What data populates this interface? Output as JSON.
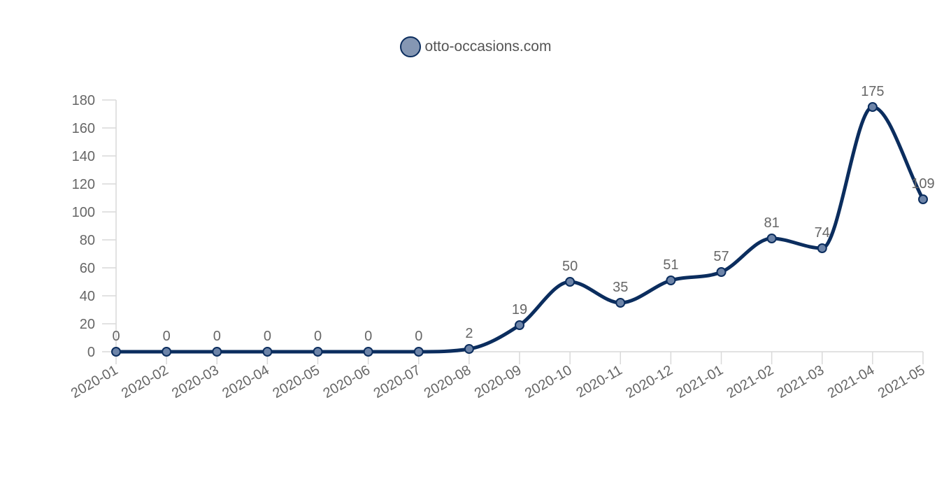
{
  "legend": {
    "label": "otto-occasions.com",
    "swatch_fill": "#8597b3",
    "swatch_border": "#0b2d5e"
  },
  "colors": {
    "line": "#0b2d5e",
    "point_fill": "#6d84a8",
    "axis": "#d9d9d9",
    "text": "#666666",
    "highlight_segment": "#c9ced6"
  },
  "chart_data": {
    "type": "line",
    "categories": [
      "2020-01",
      "2020-02",
      "2020-03",
      "2020-04",
      "2020-05",
      "2020-06",
      "2020-07",
      "2020-08",
      "2020-09",
      "2020-10",
      "2020-11",
      "2020-12",
      "2021-01",
      "2021-02",
      "2021-03",
      "2021-04",
      "2021-05"
    ],
    "series": [
      {
        "name": "otto-occasions.com",
        "values": [
          0,
          0,
          0,
          0,
          0,
          0,
          0,
          2,
          19,
          50,
          35,
          51,
          57,
          81,
          74,
          175,
          109
        ]
      }
    ],
    "title": "",
    "xlabel": "",
    "ylabel": "",
    "ylim": [
      0,
      180
    ],
    "yticks": [
      0,
      20,
      40,
      60,
      80,
      100,
      120,
      140,
      160,
      180
    ],
    "grid": false,
    "legend_position": "top-center",
    "smooth": true,
    "data_labels": true
  }
}
